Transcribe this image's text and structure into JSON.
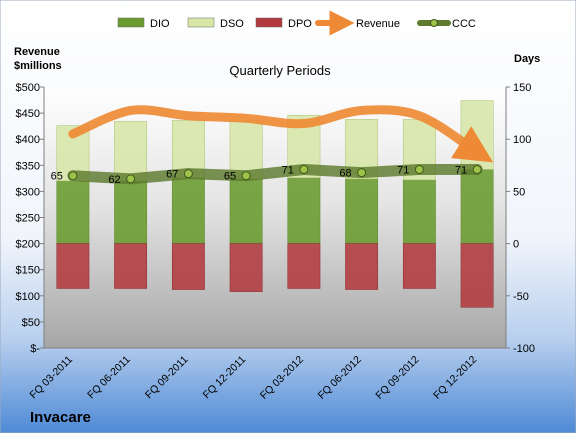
{
  "chart_data": {
    "type": "combo",
    "title": "Quarterly Periods",
    "company": "Invacare",
    "left_axis_label": "Revenue $millions",
    "right_axis_label": "Days",
    "categories": [
      "FQ 03-2011",
      "FQ 06-2011",
      "FQ 09-2011",
      "FQ 12-2011",
      "FQ 03-2012",
      "FQ 06-2012",
      "FQ 09-2012",
      "FQ 12-2012"
    ],
    "left_axis": {
      "min": 0,
      "max": 500,
      "step": 50,
      "tick_labels": [
        "$-",
        "$50",
        "$100",
        "$150",
        "$200",
        "$250",
        "$300",
        "$350",
        "$400",
        "$450",
        "$500"
      ]
    },
    "right_axis": {
      "min": -100,
      "max": 150,
      "step": 50,
      "tick_labels": [
        "-100",
        "-50",
        "0",
        "50",
        "100",
        "150"
      ]
    },
    "series": [
      {
        "name": "DIO",
        "axis": "right",
        "kind": "bar",
        "color": "#6a9b2f",
        "values": [
          60,
          60,
          63,
          62,
          63,
          62,
          61,
          71
        ]
      },
      {
        "name": "DSO",
        "axis": "right",
        "kind": "bar",
        "color": "#d8e6a8",
        "values": [
          53,
          57,
          55,
          56,
          60,
          57,
          58,
          66
        ]
      },
      {
        "name": "DPO",
        "axis": "right",
        "kind": "bar",
        "color": "#b23a3f",
        "values": [
          -43,
          -43,
          -44,
          -46,
          -43,
          -44,
          -43,
          -61
        ]
      },
      {
        "name": "Revenue",
        "axis": "left",
        "kind": "arrow-line",
        "color": "#ee8a35",
        "values": [
          410,
          455,
          445,
          440,
          430,
          455,
          445,
          375
        ]
      },
      {
        "name": "CCC",
        "axis": "right",
        "kind": "line",
        "color": "#5a7a24",
        "values": [
          65,
          62,
          67,
          65,
          71,
          68,
          71,
          71
        ]
      }
    ],
    "data_labels": [
      "65",
      "62",
      "67",
      "65",
      "71",
      "68",
      "71",
      "71"
    ],
    "legend_position": "top",
    "grid": false
  }
}
